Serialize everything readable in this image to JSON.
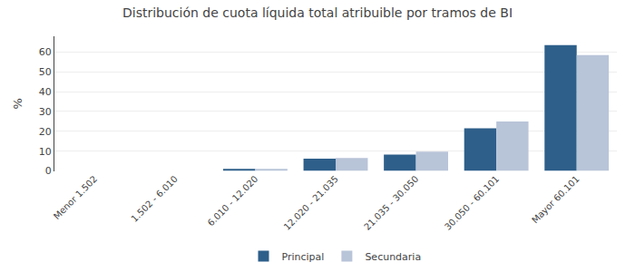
{
  "chart_data": {
    "type": "bar",
    "title": "Distribución de cuota líquida total atribuible por tramos de BI",
    "categories": [
      "Menor 1.502",
      "1.502 - 6.010",
      "6.010 - 12.020",
      "12.020 - 21.035",
      "21.035 - 30.050",
      "30.050 - 60.101",
      "Mayor 60.101"
    ],
    "series": [
      {
        "name": "Principal",
        "color": "#2E5F8A",
        "values": [
          0.0,
          0.0,
          1.0,
          6.2,
          8.2,
          21.5,
          63.5
        ]
      },
      {
        "name": "Secundaria",
        "color": "#B8C4D8",
        "values": [
          0.0,
          0.0,
          1.0,
          6.5,
          9.7,
          25.0,
          58.5
        ]
      }
    ],
    "ylabel": "%",
    "ylim": [
      0,
      68
    ],
    "yticks": [
      0,
      10,
      20,
      30,
      40,
      50,
      60
    ],
    "grid": true,
    "legend": "bottom"
  }
}
